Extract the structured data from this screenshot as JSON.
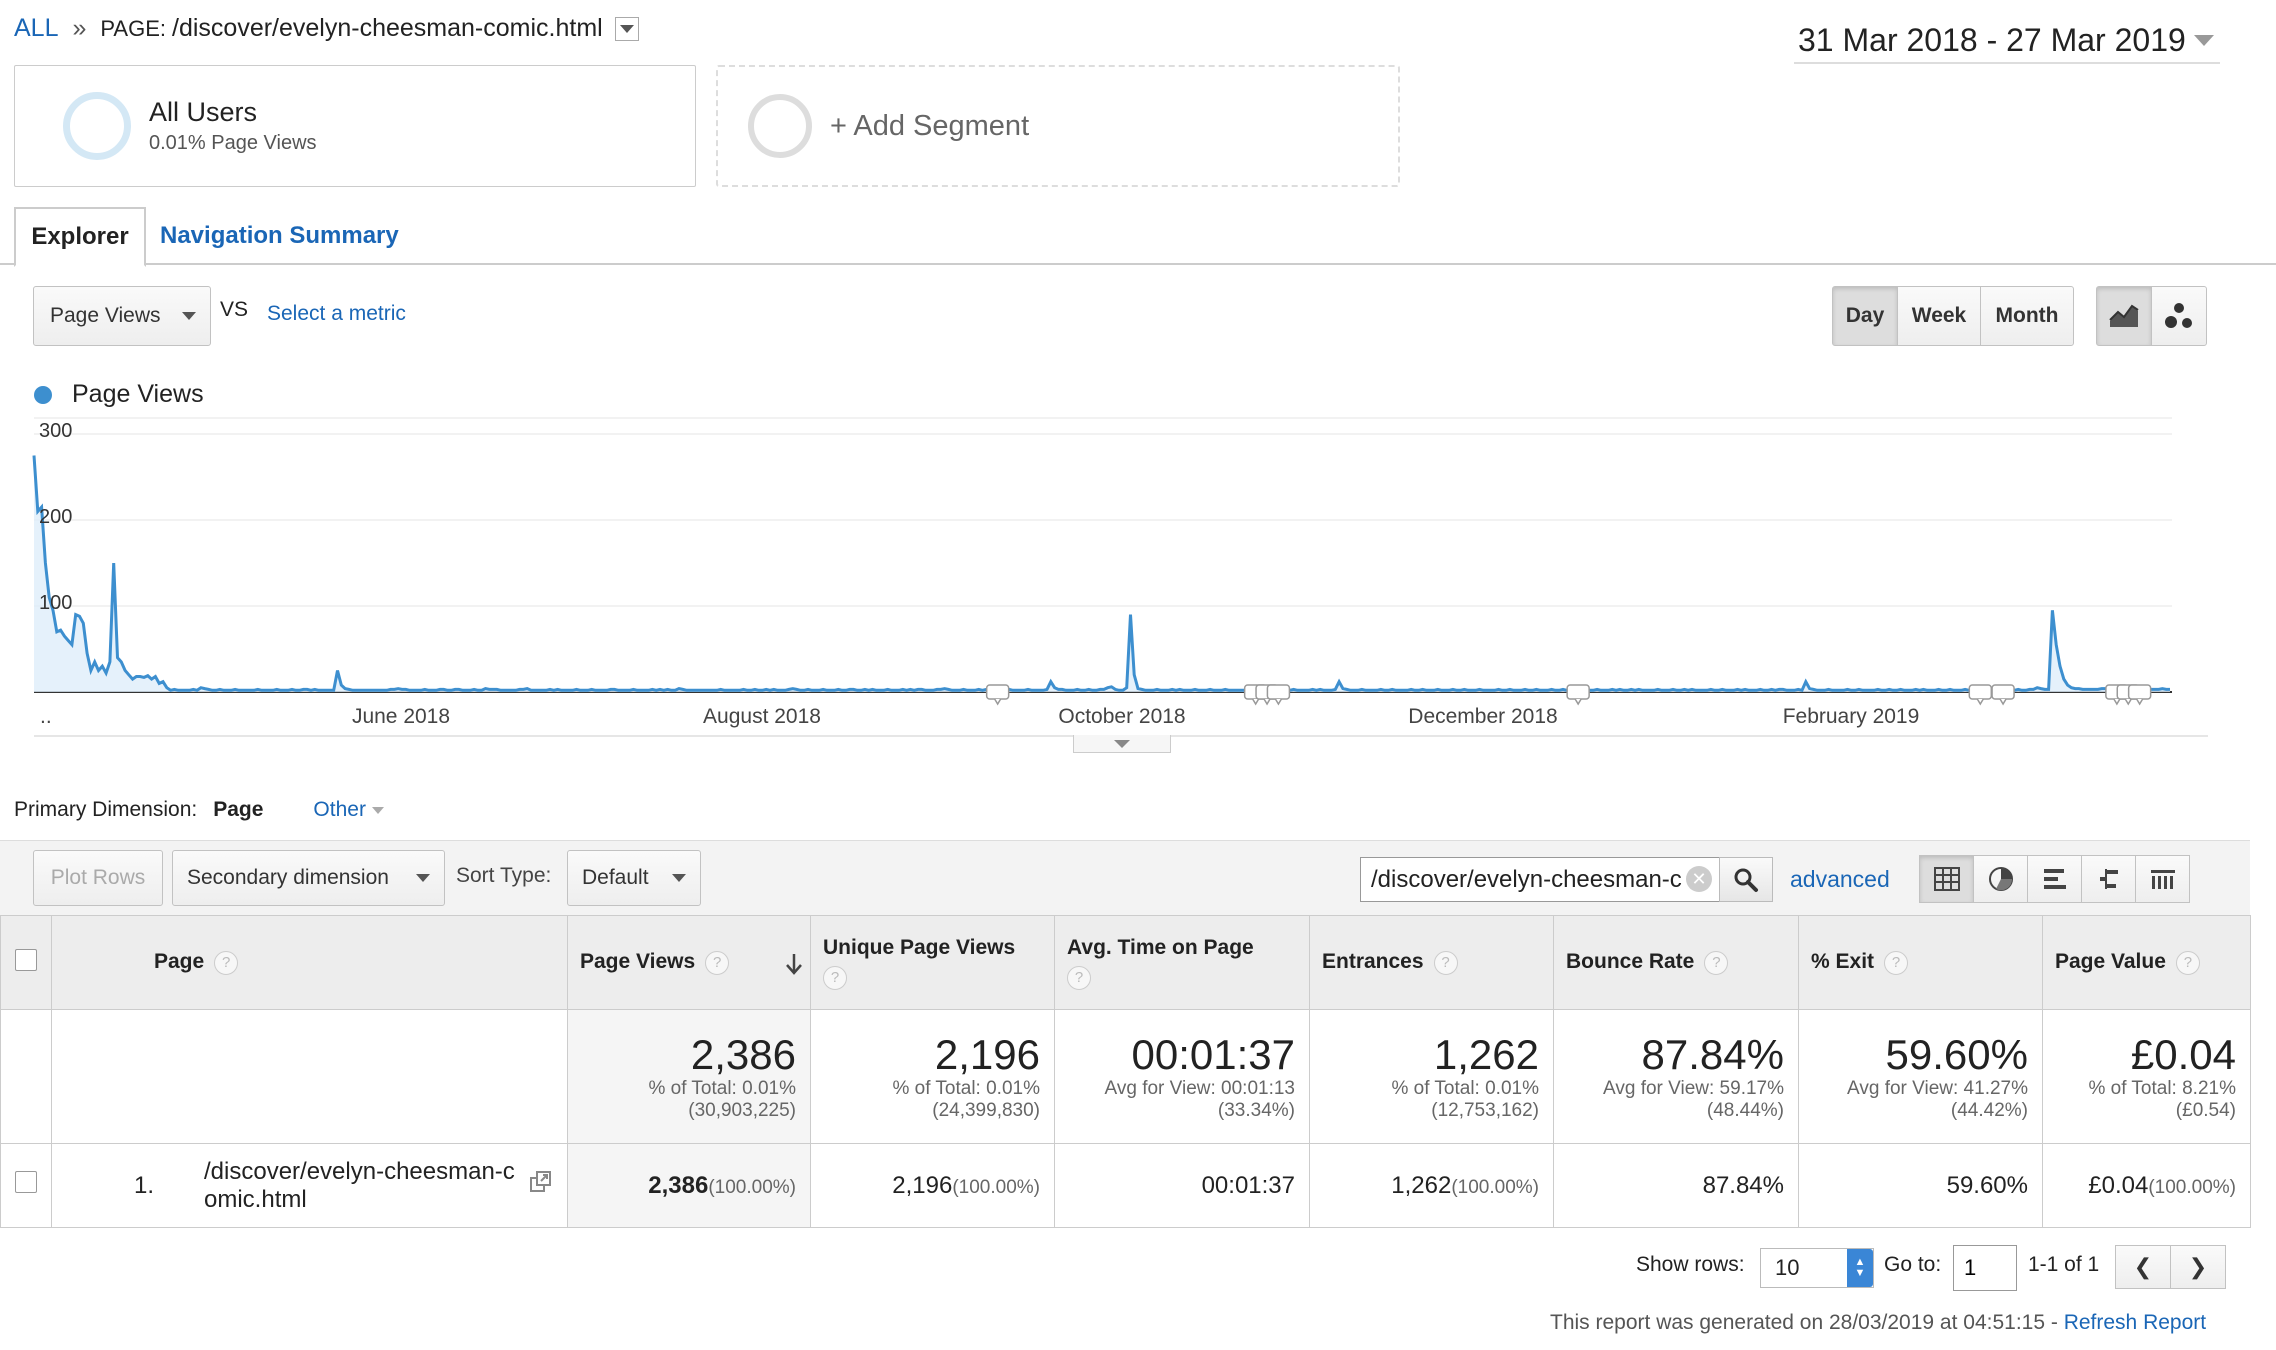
{
  "breadcrumb": {
    "all": "ALL",
    "separator": "»",
    "prefix": "PAGE:",
    "page": "/discover/evelyn-cheesman-comic.html"
  },
  "date_range": "31 Mar 2018 - 27 Mar 2019",
  "segments": {
    "all_users": {
      "name": "All Users",
      "sub": "0.01% Page Views"
    },
    "add": "+ Add Segment"
  },
  "tabs": [
    {
      "label": "Explorer",
      "active": true
    },
    {
      "label": "Navigation Summary",
      "active": false
    }
  ],
  "metric": {
    "selected": "Page Views",
    "vs": "VS",
    "select_metric": "Select a metric"
  },
  "period_buttons": {
    "day": "Day",
    "week": "Week",
    "month": "Month",
    "selected": "Day"
  },
  "chart_data": {
    "type": "line",
    "series": [
      {
        "name": "Page Views",
        "color": "#3d8fcf",
        "values": [
          275,
          210,
          215,
          150,
          110,
          95,
          70,
          72,
          65,
          60,
          55,
          90,
          88,
          80,
          45,
          25,
          35,
          25,
          30,
          22,
          35,
          150,
          40,
          35,
          25,
          20,
          15,
          18,
          18,
          17,
          19,
          15,
          18,
          10,
          12,
          5,
          2,
          3,
          2,
          2,
          2,
          2,
          3,
          2,
          5,
          4,
          3,
          2,
          2,
          3,
          2,
          2,
          2,
          3,
          2,
          2,
          2,
          2,
          2,
          3,
          2,
          2,
          2,
          2,
          3,
          2,
          2,
          2,
          3,
          2,
          2,
          3,
          3,
          2,
          3,
          2,
          2,
          2,
          2,
          2,
          25,
          8,
          4,
          3,
          2,
          2,
          2,
          2,
          2,
          2,
          2,
          2,
          2,
          2,
          3,
          3,
          4,
          3,
          3,
          2,
          2,
          2,
          2,
          3,
          2,
          2,
          2,
          3,
          3,
          2,
          2,
          3,
          3,
          2,
          2,
          2,
          3,
          2,
          2,
          4,
          3,
          3,
          3,
          2,
          2,
          2,
          2,
          2,
          3,
          3,
          4,
          2,
          2,
          2,
          2,
          2,
          3,
          2,
          3,
          2,
          2,
          2,
          2,
          3,
          2,
          2,
          2,
          3,
          2,
          2,
          2,
          2,
          3,
          3,
          2,
          2,
          2,
          2,
          3,
          2,
          2,
          2,
          2,
          3,
          2,
          3,
          2,
          3,
          2,
          2,
          4,
          3,
          2,
          2,
          2,
          2,
          2,
          2,
          2,
          2,
          2,
          3,
          2,
          2,
          2,
          2,
          2,
          3,
          2,
          2,
          3,
          2,
          2,
          3,
          2,
          3,
          2,
          2,
          2,
          3,
          4,
          3,
          2,
          2,
          3,
          2,
          2,
          2,
          3,
          2,
          2,
          2,
          3,
          2,
          2,
          3,
          3,
          2,
          2,
          3,
          2,
          3,
          2,
          2,
          2,
          3,
          2,
          2,
          2,
          3,
          2,
          3,
          2,
          3,
          3,
          2,
          2,
          2,
          3,
          3,
          4,
          3,
          2,
          2,
          2,
          3,
          2,
          2,
          2,
          3,
          2,
          3,
          2,
          2,
          2,
          3,
          4,
          3,
          2,
          2,
          2,
          2,
          3,
          2,
          2,
          2,
          2,
          3,
          12,
          5,
          3,
          3,
          2,
          2,
          2,
          3,
          2,
          2,
          3,
          2,
          2,
          3,
          3,
          5,
          6,
          3,
          2,
          2,
          5,
          90,
          20,
          4,
          3,
          2,
          2,
          2,
          3,
          2,
          2,
          2,
          3,
          2,
          3,
          2,
          2,
          2,
          3,
          2,
          2,
          2,
          3,
          2,
          2,
          2,
          3,
          2,
          2,
          2,
          2,
          2,
          2,
          2,
          3,
          2,
          2,
          2,
          3,
          2,
          3,
          2,
          2,
          2,
          3,
          2,
          2,
          2,
          2,
          3,
          2,
          3,
          2,
          2,
          2,
          3,
          12,
          4,
          3,
          2,
          2,
          2,
          3,
          2,
          2,
          2,
          2,
          3,
          2,
          2,
          3,
          2,
          2,
          2,
          2,
          3,
          2,
          2,
          3,
          2,
          2,
          2,
          3,
          2,
          2,
          2,
          3,
          2,
          2,
          3,
          2,
          2,
          2,
          3,
          2,
          2,
          2,
          2,
          3,
          2,
          2,
          3,
          2,
          2,
          2,
          3,
          2,
          2,
          3,
          2,
          2,
          2,
          3,
          2,
          2,
          3,
          2,
          3,
          2,
          2,
          3,
          2,
          2,
          2,
          3,
          2,
          2,
          2,
          3,
          2,
          3,
          2,
          2,
          3,
          2,
          3,
          2,
          2,
          2,
          2,
          3,
          2,
          2,
          2,
          3,
          2,
          2,
          3,
          2,
          3,
          2,
          2,
          2,
          2,
          3,
          2,
          2,
          3,
          2,
          2,
          2,
          3,
          2,
          3,
          2,
          2,
          2,
          3,
          2,
          2,
          3,
          2,
          3,
          3,
          2,
          2,
          2,
          3,
          2,
          12,
          4,
          3,
          2,
          2,
          2,
          3,
          2,
          2,
          2,
          2,
          3,
          2,
          2,
          3,
          2,
          2,
          2,
          2,
          3,
          2,
          2,
          3,
          2,
          2,
          3,
          2,
          2,
          2,
          3,
          2,
          3,
          2,
          2,
          2,
          3,
          2,
          2,
          3,
          2,
          2,
          2,
          3,
          2,
          2,
          3,
          2,
          2,
          2,
          3,
          2,
          2,
          3,
          2,
          2,
          2,
          3,
          2,
          2,
          3,
          3,
          5,
          4,
          3,
          3,
          95,
          55,
          30,
          15,
          8,
          5,
          4,
          4,
          3,
          3,
          3,
          3,
          3,
          4,
          4,
          3,
          3,
          3,
          3,
          4,
          3,
          3,
          3,
          3,
          3,
          3,
          3,
          3,
          3,
          4,
          3,
          3
        ],
        "annotation_indices": [
          254,
          322,
          325,
          328,
          407,
          513,
          519,
          549,
          552,
          555
        ]
      }
    ],
    "x_tick_labels": [
      "..",
      "June 2018",
      "August 2018",
      "October 2018",
      "December 2018",
      "February 2019"
    ],
    "y_tick_labels": [
      "300",
      "200",
      "100"
    ],
    "ylim": [
      0,
      300
    ],
    "grid": true,
    "legend": "top-left"
  },
  "primary_dimension": {
    "label": "Primary Dimension:",
    "active": "Page",
    "other": "Other"
  },
  "toolbar": {
    "plot_rows": "Plot Rows",
    "secondary_dimension": "Secondary dimension",
    "sort_type_label": "Sort Type:",
    "sort_type": "Default",
    "search_value": "/discover/evelyn-cheesman-c",
    "advanced": "advanced"
  },
  "table": {
    "headers": {
      "page": "Page",
      "page_views": "Page Views",
      "unique_page_views": "Unique Page Views",
      "avg_time": "Avg. Time on Page",
      "entrances": "Entrances",
      "bounce_rate": "Bounce Rate",
      "exit": "% Exit",
      "page_value": "Page Value"
    },
    "help": "?",
    "totals": {
      "page_views": {
        "value": "2,386",
        "sub1": "% of Total: 0.01%",
        "sub2": "(30,903,225)"
      },
      "unique_page_views": {
        "value": "2,196",
        "sub1": "% of Total: 0.01%",
        "sub2": "(24,399,830)"
      },
      "avg_time": {
        "value": "00:01:37",
        "sub1": "Avg for View: 00:01:13",
        "sub2": "(33.34%)"
      },
      "entrances": {
        "value": "1,262",
        "sub1": "% of Total: 0.01%",
        "sub2": "(12,753,162)"
      },
      "bounce_rate": {
        "value": "87.84%",
        "sub1": "Avg for View: 59.17%",
        "sub2": "(48.44%)"
      },
      "exit": {
        "value": "59.60%",
        "sub1": "Avg for View: 41.27%",
        "sub2": "(44.42%)"
      },
      "page_value": {
        "value": "£0.04",
        "sub1": "% of Total: 8.21%",
        "sub2": "(£0.54)"
      }
    },
    "rows": [
      {
        "index": "1.",
        "page": "/discover/evelyn-cheesman-comic.html",
        "page_views": "2,386",
        "page_views_pct": "(100.00%)",
        "unique_page_views": "2,196",
        "unique_page_views_pct": "(100.00%)",
        "avg_time": "00:01:37",
        "entrances": "1,262",
        "entrances_pct": "(100.00%)",
        "bounce_rate": "87.84%",
        "exit": "59.60%",
        "page_value": "£0.04",
        "page_value_pct": "(100.00%)"
      }
    ]
  },
  "footer": {
    "show_rows_label": "Show rows:",
    "show_rows": "10",
    "goto_label": "Go to:",
    "goto_value": "1",
    "range": "1-1 of 1",
    "generated": "This report was generated on 28/03/2019 at 04:51:15 -",
    "refresh": "Refresh Report"
  }
}
